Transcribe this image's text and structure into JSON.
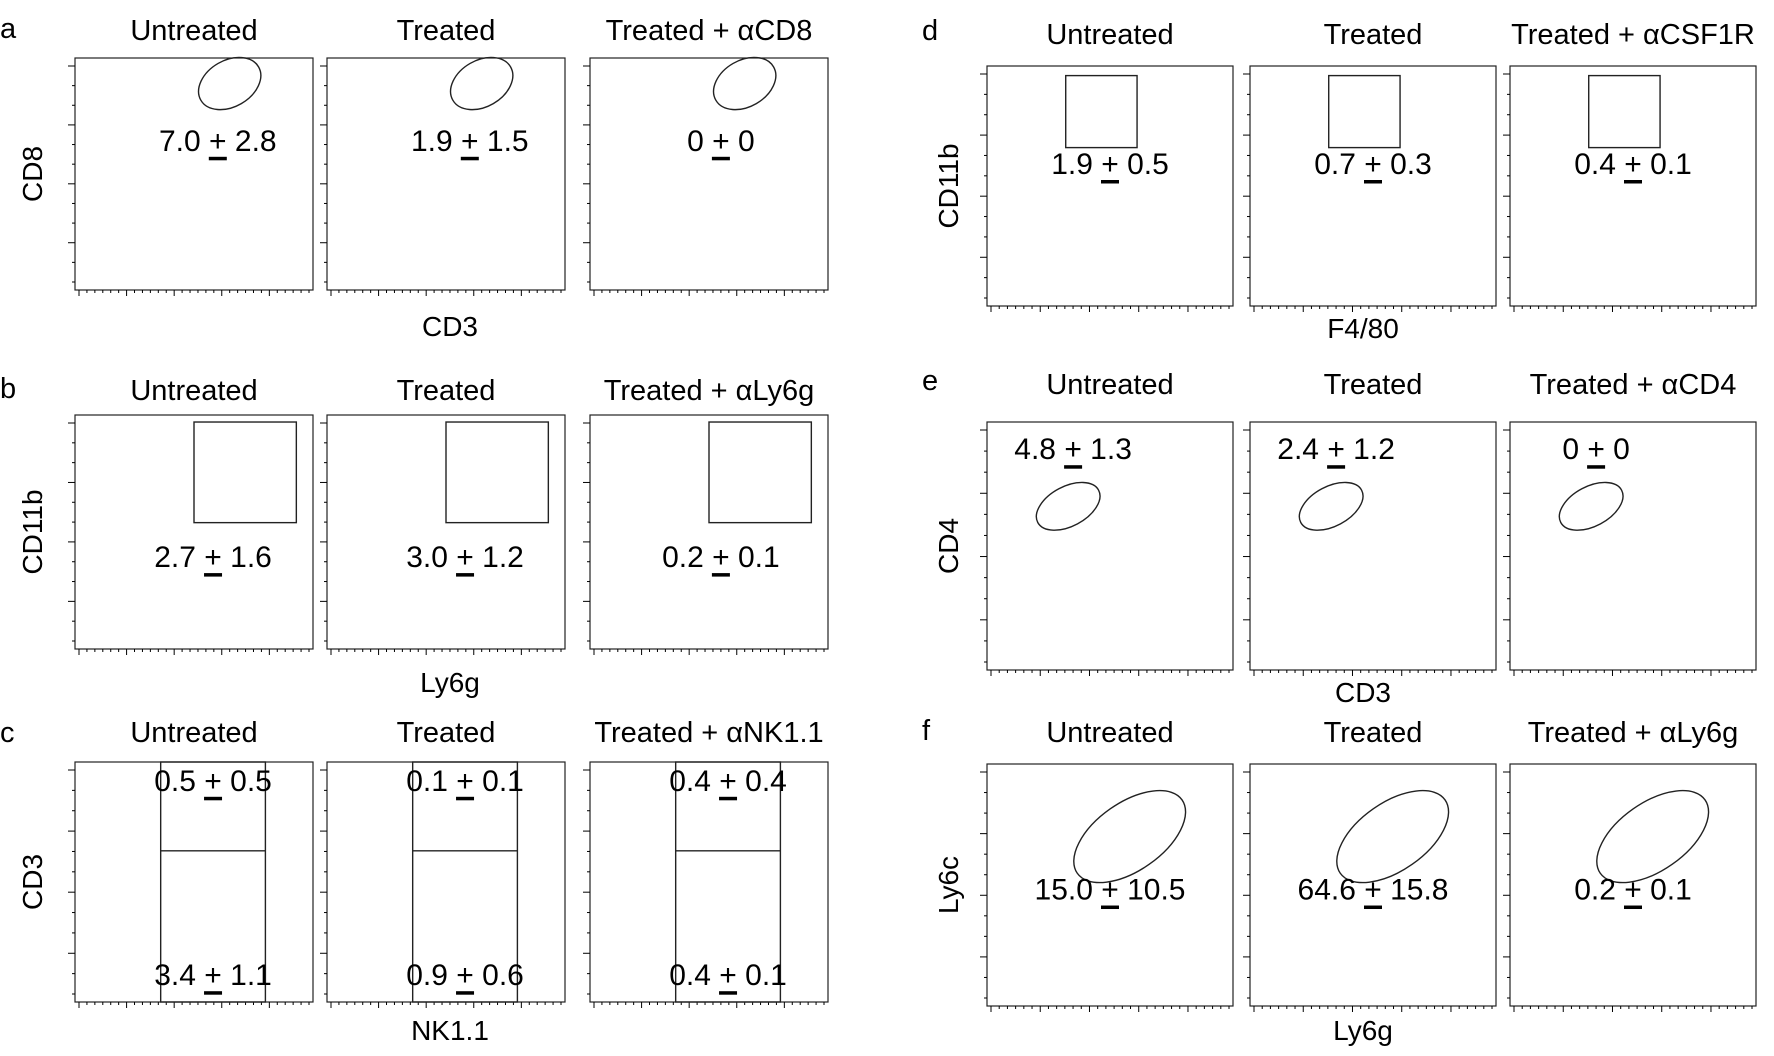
{
  "chart_data": {
    "type": "scatter",
    "title": "",
    "panels": [
      {
        "id": "a",
        "label": "a",
        "x_label": "CD3",
        "y_label": "CD8",
        "subplots": [
          {
            "condition": "Untreated",
            "gate": "ellipse",
            "stat": "7.0 + 2.8"
          },
          {
            "condition": "Treated",
            "gate": "ellipse",
            "stat": "1.9 + 1.5"
          },
          {
            "condition": "Treated + αCD8",
            "gate": "ellipse",
            "stat": "0 + 0"
          }
        ]
      },
      {
        "id": "b",
        "label": "b",
        "x_label": "Ly6g",
        "y_label": "CD11b",
        "subplots": [
          {
            "condition": "Untreated",
            "gate": "rectangle",
            "stat": "2.7 + 1.6"
          },
          {
            "condition": "Treated",
            "gate": "rectangle",
            "stat": "3.0 + 1.2"
          },
          {
            "condition": "Treated + αLy6g",
            "gate": "rectangle",
            "stat": "0.2 + 0.1"
          }
        ]
      },
      {
        "id": "c",
        "label": "c",
        "x_label": "NK1.1",
        "y_label": "CD3",
        "subplots": [
          {
            "condition": "Untreated",
            "gate": "split-rectangle",
            "stat_upper": "0.5 + 0.5",
            "stat_lower": "3.4 + 1.1"
          },
          {
            "condition": "Treated",
            "gate": "split-rectangle",
            "stat_upper": "0.1 + 0.1",
            "stat_lower": "0.9 + 0.6"
          },
          {
            "condition": "Treated + αNK1.1",
            "gate": "split-rectangle",
            "stat_upper": "0.4 + 0.4",
            "stat_lower": "0.4 + 0.1"
          }
        ]
      },
      {
        "id": "d",
        "label": "d",
        "x_label": "F4/80",
        "y_label": "CD11b",
        "subplots": [
          {
            "condition": "Untreated",
            "gate": "rectangle",
            "stat": "1.9 + 0.5"
          },
          {
            "condition": "Treated",
            "gate": "rectangle",
            "stat": "0.7 + 0.3"
          },
          {
            "condition": "Treated + αCSF1R",
            "gate": "rectangle",
            "stat": "0.4 + 0.1"
          }
        ]
      },
      {
        "id": "e",
        "label": "e",
        "x_label": "CD3",
        "y_label": "CD4",
        "subplots": [
          {
            "condition": "Untreated",
            "gate": "ellipse",
            "stat": "4.8 + 1.3"
          },
          {
            "condition": "Treated",
            "gate": "ellipse",
            "stat": "2.4 + 1.2"
          },
          {
            "condition": "Treated + αCD4",
            "gate": "ellipse",
            "stat": "0 + 0"
          }
        ]
      },
      {
        "id": "f",
        "label": "f",
        "x_label": "Ly6g",
        "y_label": "Ly6c",
        "subplots": [
          {
            "condition": "Untreated",
            "gate": "ellipse",
            "stat": "15.0 + 10.5"
          },
          {
            "condition": "Treated",
            "gate": "ellipse",
            "stat": "64.6 + 15.8"
          },
          {
            "condition": "Treated + αLy6g",
            "gate": "ellipse",
            "stat": "0.2 + 0.1"
          }
        ]
      }
    ]
  }
}
